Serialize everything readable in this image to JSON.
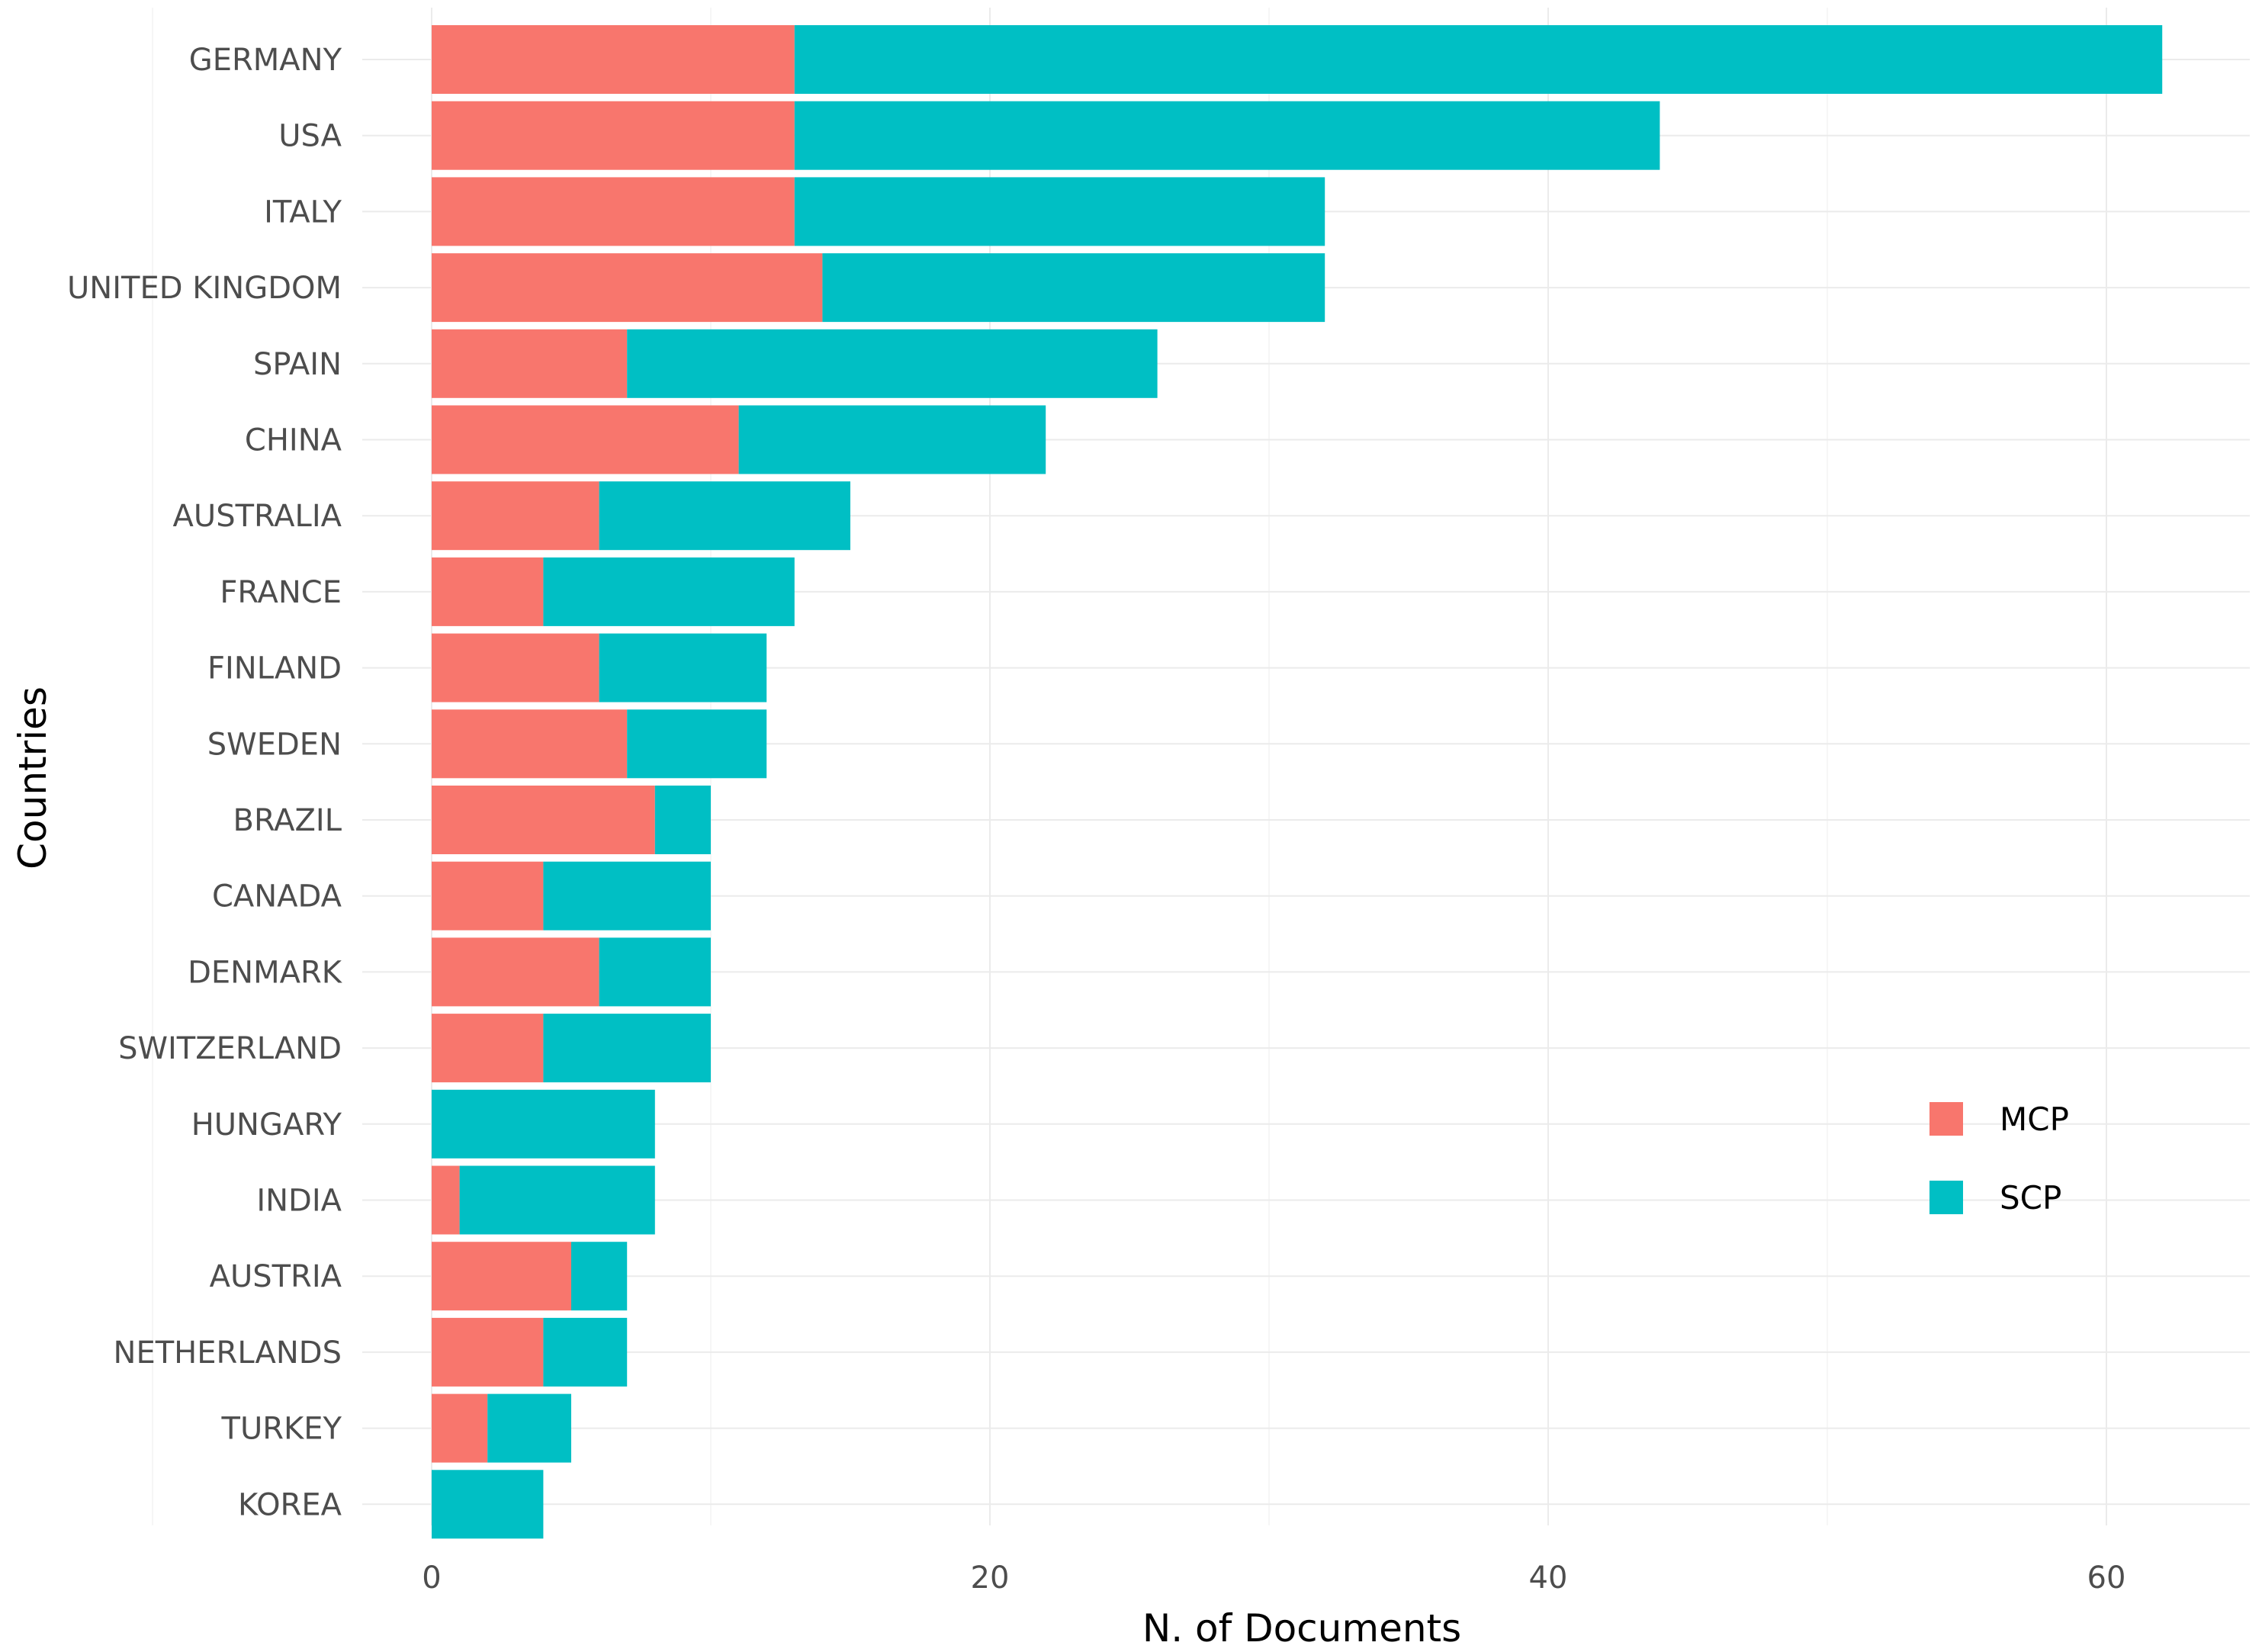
{
  "chart_data": {
    "type": "bar",
    "orientation": "horizontal",
    "stacked": true,
    "xlabel": "N. of Documents",
    "ylabel": "Countries",
    "xlim": [
      0,
      65
    ],
    "xticks": [
      0,
      20,
      40,
      60
    ],
    "grid": true,
    "legend_position": "right",
    "categories": [
      "GERMANY",
      "USA",
      "ITALY",
      "UNITED KINGDOM",
      "SPAIN",
      "CHINA",
      "AUSTRALIA",
      "FRANCE",
      "FINLAND",
      "SWEDEN",
      "BRAZIL",
      "CANADA",
      "DENMARK",
      "SWITZERLAND",
      "HUNGARY",
      "INDIA",
      "AUSTRIA",
      "NETHERLANDS",
      "TURKEY",
      "KOREA"
    ],
    "series": [
      {
        "name": "MCP",
        "color": "#F8766D",
        "values": [
          13,
          13,
          13,
          14,
          7,
          11,
          6,
          4,
          6,
          7,
          8,
          4,
          6,
          4,
          0,
          1,
          5,
          4,
          2,
          0
        ]
      },
      {
        "name": "SCP",
        "color": "#00BFC4",
        "values": [
          49,
          31,
          19,
          18,
          19,
          11,
          9,
          9,
          6,
          5,
          2,
          6,
          4,
          6,
          8,
          7,
          2,
          3,
          3,
          4
        ]
      }
    ]
  }
}
